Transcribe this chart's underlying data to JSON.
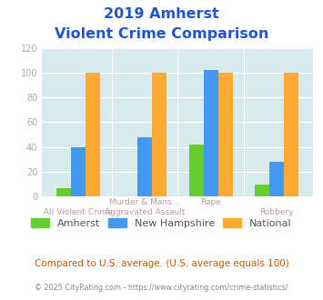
{
  "title_line1": "2019 Amherst",
  "title_line2": "Violent Crime Comparison",
  "line1_labels": [
    "",
    "Murder & Mans...",
    "Rape",
    ""
  ],
  "line2_labels": [
    "All Violent Crime",
    "Aggravated Assault",
    "",
    "Robbery"
  ],
  "series": {
    "Amherst": [
      7,
      0,
      42,
      10
    ],
    "New Hampshire": [
      40,
      48,
      102,
      28
    ],
    "National": [
      100,
      100,
      100,
      100
    ]
  },
  "colors": {
    "Amherst": "#66cc33",
    "New Hampshire": "#4499ee",
    "National": "#ffaa33"
  },
  "ylim": [
    0,
    120
  ],
  "yticks": [
    0,
    20,
    40,
    60,
    80,
    100,
    120
  ],
  "title_color": "#2255cc",
  "axis_bg_color": "#d8eaee",
  "fig_bg_color": "#ffffff",
  "footer_text": "Compared to U.S. average. (U.S. average equals 100)",
  "copyright_text": "© 2025 CityRating.com - https://www.cityrating.com/crime-statistics/",
  "footer_color": "#cc5500",
  "copyright_color": "#888888",
  "grid_color": "#ffffff",
  "tick_color": "#aaaaaa",
  "label_color": "#bb9999"
}
